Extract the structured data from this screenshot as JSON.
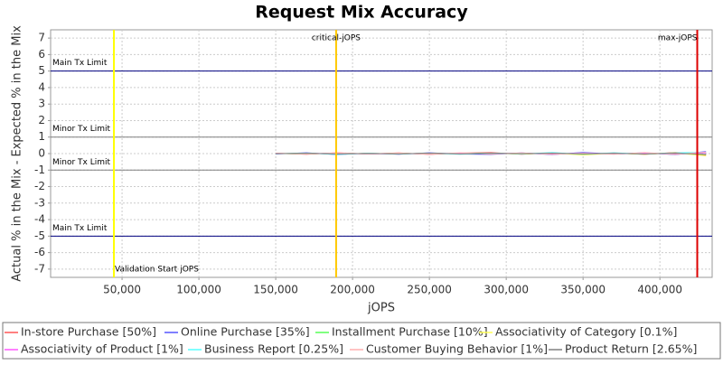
{
  "chart_data": {
    "type": "line",
    "title": "Request Mix Accuracy",
    "x_label": "jOPS",
    "y_label": "Actual % in the Mix - Expected % in the Mix",
    "xlim": [
      3500,
      434000
    ],
    "ylim": [
      -7.5,
      7.5
    ],
    "xticks": [
      {
        "value": 50000,
        "label": "50,000"
      },
      {
        "value": 100000,
        "label": "100,000"
      },
      {
        "value": 150000,
        "label": "150,000"
      },
      {
        "value": 200000,
        "label": "200,000"
      },
      {
        "value": 250000,
        "label": "250,000"
      },
      {
        "value": 300000,
        "label": "300,000"
      },
      {
        "value": 350000,
        "label": "350,000"
      },
      {
        "value": 400000,
        "label": "400,000"
      }
    ],
    "yticks": [
      -7,
      -6,
      -5,
      -4,
      -3,
      -2,
      -1,
      0,
      1,
      2,
      3,
      4,
      5,
      6,
      7
    ],
    "grid": true,
    "x": [
      150000,
      170000,
      190000,
      210000,
      230000,
      250000,
      270000,
      290000,
      310000,
      330000,
      350000,
      370000,
      390000,
      410000,
      430000
    ],
    "series": [
      {
        "name": "In-store Purchase [50%]",
        "color": "#ff5555",
        "values": [
          0.02,
          -0.04,
          0.05,
          -0.03,
          0.04,
          -0.05,
          0.03,
          0.06,
          -0.04,
          0.05,
          -0.06,
          0.04,
          -0.05,
          0.07,
          -0.1
        ]
      },
      {
        "name": "Online Purchase [35%]",
        "color": "#5555ff",
        "values": [
          -0.02,
          0.05,
          -0.06,
          0.03,
          -0.04,
          0.05,
          -0.03,
          -0.05,
          0.04,
          -0.06,
          0.07,
          -0.03,
          0.05,
          -0.06,
          0.12
        ]
      },
      {
        "name": "Installment Purchase [10%]",
        "color": "#55ff55",
        "values": [
          0.01,
          -0.02,
          0.03,
          -0.02,
          0.02,
          -0.03,
          0.02,
          0.03,
          -0.02,
          0.02,
          -0.03,
          0.02,
          -0.03,
          0.04,
          -0.05
        ]
      },
      {
        "name": "Associativity of Category [0.1%]",
        "color": "#ffff55",
        "values": [
          0.0,
          0.02,
          -0.03,
          0.02,
          -0.02,
          0.03,
          -0.02,
          0.02,
          -0.03,
          0.04,
          -0.09,
          0.03,
          -0.04,
          0.05,
          -0.14
        ]
      },
      {
        "name": "Associativity of Product [1%]",
        "color": "#ff55ff",
        "values": [
          0.01,
          -0.01,
          0.02,
          -0.02,
          0.01,
          -0.02,
          0.02,
          -0.01,
          0.02,
          -0.02,
          0.03,
          -0.02,
          0.02,
          -0.03,
          0.04
        ]
      },
      {
        "name": "Business Report [0.25%]",
        "color": "#55ffff",
        "values": [
          -0.01,
          0.03,
          -0.05,
          0.02,
          -0.03,
          0.02,
          -0.04,
          0.03,
          -0.02,
          0.06,
          -0.04,
          0.05,
          -0.03,
          0.04,
          0.08
        ]
      },
      {
        "name": "Customer Buying Behavior [1%]",
        "color": "#ffafaf",
        "values": [
          0.02,
          -0.03,
          0.04,
          -0.02,
          0.03,
          -0.04,
          0.05,
          -0.03,
          0.04,
          -0.05,
          0.03,
          -0.04,
          0.06,
          -0.05,
          0.09
        ]
      },
      {
        "name": "Product Return [2.65%]",
        "color": "#808080",
        "values": [
          -0.01,
          0.02,
          -0.02,
          0.01,
          -0.02,
          0.03,
          -0.02,
          0.02,
          -0.01,
          0.03,
          -0.02,
          0.02,
          -0.03,
          0.03,
          -0.06
        ]
      }
    ],
    "hlines": [
      {
        "label": "Main Tx Limit",
        "value": 5,
        "color": "#000080"
      },
      {
        "label": "Minor Tx Limit",
        "value": 1,
        "color": "#808080"
      },
      {
        "label": "Minor Tx Limit",
        "value": -1,
        "color": "#808080"
      },
      {
        "label": "Main Tx Limit",
        "value": -5,
        "color": "#000080"
      }
    ],
    "vlines": [
      {
        "label": "Validation Start jOPS",
        "value": 44700,
        "color": "#ffff00"
      },
      {
        "label": "critical-jOPS",
        "value": 189300,
        "color": "#ffc800"
      },
      {
        "label": "max-jOPS",
        "value": 424300,
        "color": "#dd0000"
      }
    ]
  }
}
